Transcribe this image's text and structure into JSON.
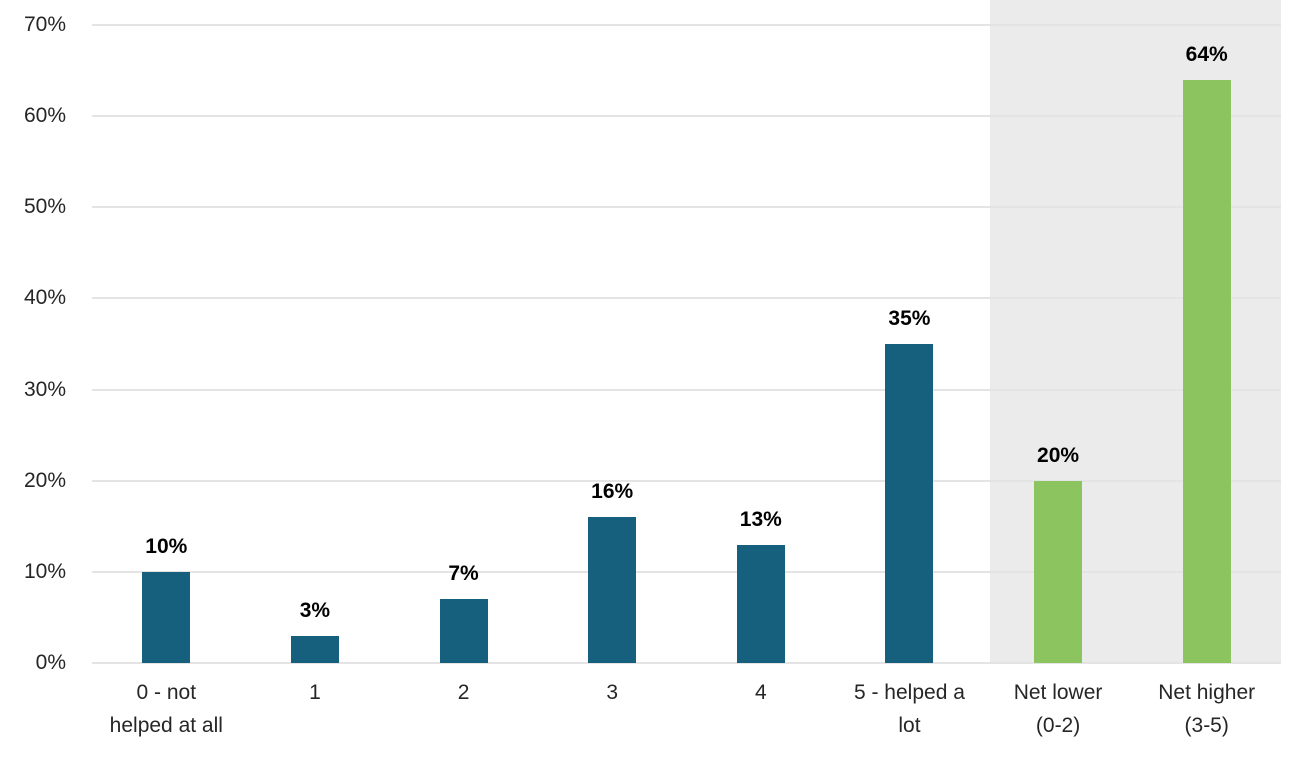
{
  "chart_data": {
    "type": "bar",
    "title": "",
    "xlabel": "",
    "ylabel": "",
    "categories": [
      "0 - not helped at all",
      "1",
      "2",
      "3",
      "4",
      "5 - helped a lot",
      "Net lower (0-2)",
      "Net higher (3-5)"
    ],
    "category_lines": [
      [
        "0 - not",
        "helped at all"
      ],
      [
        "1"
      ],
      [
        "2"
      ],
      [
        "3"
      ],
      [
        "4"
      ],
      [
        "5 - helped a",
        "lot"
      ],
      [
        "Net lower",
        "(0-2)"
      ],
      [
        "Net higher",
        "(3-5)"
      ]
    ],
    "values": [
      10,
      3,
      7,
      16,
      13,
      35,
      20,
      64
    ],
    "data_labels": [
      "10%",
      "3%",
      "7%",
      "16%",
      "13%",
      "35%",
      "20%",
      "64%"
    ],
    "ylim": [
      0,
      70
    ],
    "ytick_labels": [
      "0%",
      "10%",
      "20%",
      "30%",
      "40%",
      "50%",
      "60%",
      "70%"
    ],
    "grid": true,
    "legend": false,
    "bar_colors": [
      "#165F7D",
      "#165F7D",
      "#165F7D",
      "#165F7D",
      "#165F7D",
      "#165F7D",
      "#8CC45F",
      "#8CC45F"
    ],
    "highlight": {
      "from_index": 6,
      "to_index": 7,
      "color": "#EBEBEB"
    },
    "colors": {
      "scale_bars": "#165F7D",
      "net_bars": "#8CC45F",
      "gridline": "#E4E4E4",
      "axis_text": "#262626",
      "value_text": "#000000",
      "background": "#FFFFFF"
    }
  }
}
